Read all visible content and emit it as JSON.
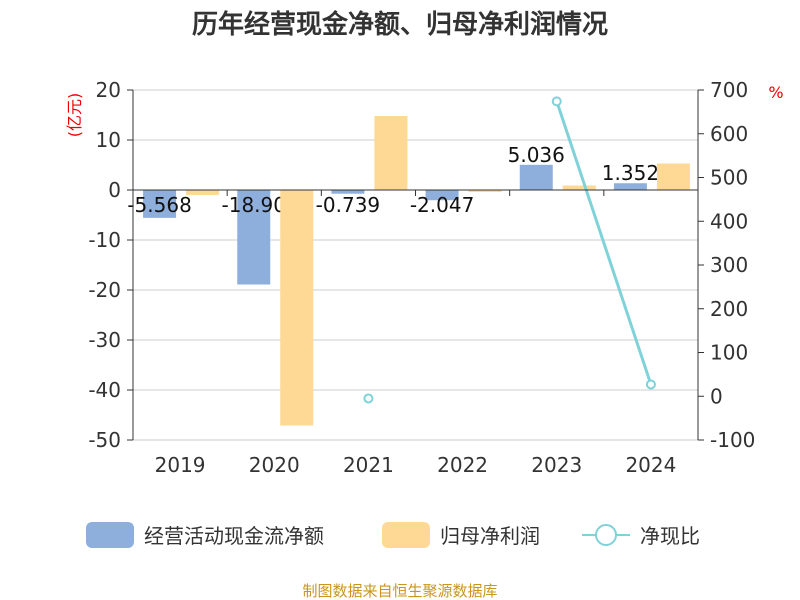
{
  "chart_data": {
    "type": "bar",
    "title": "历年经营现金净额、归母净利润情况",
    "categories": [
      "2019",
      "2020",
      "2021",
      "2022",
      "2023",
      "2024"
    ],
    "left_axis": {
      "unit": "(亿元)",
      "ylim": [
        -50,
        20
      ],
      "ticks": [
        20,
        10,
        0,
        -10,
        -20,
        -30,
        -40,
        -50
      ]
    },
    "right_axis": {
      "unit": "%",
      "ylim": [
        -100,
        700
      ],
      "ticks": [
        700,
        600,
        500,
        400,
        300,
        200,
        100,
        0,
        -100
      ]
    },
    "grid": true,
    "legend_position": "bottom",
    "series": [
      {
        "name": "经营活动现金流净额",
        "type": "bar",
        "axis": "left",
        "color": "#8eaedb",
        "values": [
          -5.568,
          -18.9,
          -0.739,
          -2.047,
          5.036,
          1.352
        ],
        "labels": [
          "-5.568",
          "-18.90",
          "-0.739",
          "-2.047",
          "5.036",
          "1.352"
        ]
      },
      {
        "name": "归母净利润",
        "type": "bar",
        "axis": "left",
        "color": "#fed895",
        "values": [
          -1.0,
          -47.1,
          14.8,
          -0.4,
          0.9,
          5.3
        ]
      },
      {
        "name": "净现比",
        "type": "line",
        "axis": "right",
        "color": "#7fd3d8",
        "values": [
          null,
          null,
          -5,
          null,
          674,
          27
        ]
      }
    ]
  },
  "source": "制图数据来自恒生聚源数据库"
}
